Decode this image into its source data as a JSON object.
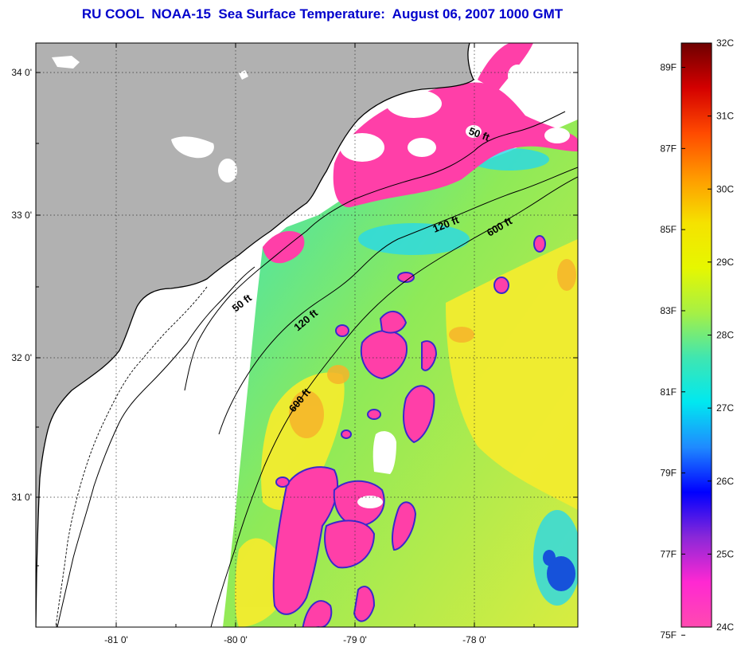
{
  "title": "RU COOL  NOAA-15  Sea Surface Temperature:  August 06, 2007 1000 GMT",
  "map": {
    "lon_labels": [
      "-81 0'",
      "-80 0'",
      "-79 0'",
      "-78 0'"
    ],
    "lat_labels": [
      "34 0'",
      "33 0'",
      "32 0'",
      "31 0'"
    ],
    "depth_contours": [
      {
        "label": "50 ft"
      },
      {
        "label": "120 ft"
      },
      {
        "label": "600 ft"
      }
    ],
    "contour_labels": [
      "50 ft",
      "120 ft",
      "600 ft",
      "50 ft",
      "120 ft",
      "600 ft"
    ],
    "colors": {
      "land": "#b1b1b1",
      "no_data": "#ffffff",
      "sst_cool": "#ff44aa",
      "sst_mid": "#44ddaa",
      "sst_warm": "#eeee33"
    }
  },
  "colorbar": {
    "celsius_labels": [
      "32C",
      "31C",
      "30C",
      "29C",
      "28C",
      "27C",
      "26C",
      "25C",
      "24C"
    ],
    "fahrenheit_labels": [
      "89F",
      "87F",
      "85F",
      "83F",
      "81F",
      "79F",
      "77F",
      "75F"
    ],
    "stops": [
      "#6e0000",
      "#d40000",
      "#ff4a00",
      "#ff9a00",
      "#f5e200",
      "#e6f700",
      "#a6f045",
      "#40e6b0",
      "#00e8f0",
      "#1f8aff",
      "#0000ff",
      "#8a28d8",
      "#ff28d2",
      "#ff4ab0"
    ]
  }
}
